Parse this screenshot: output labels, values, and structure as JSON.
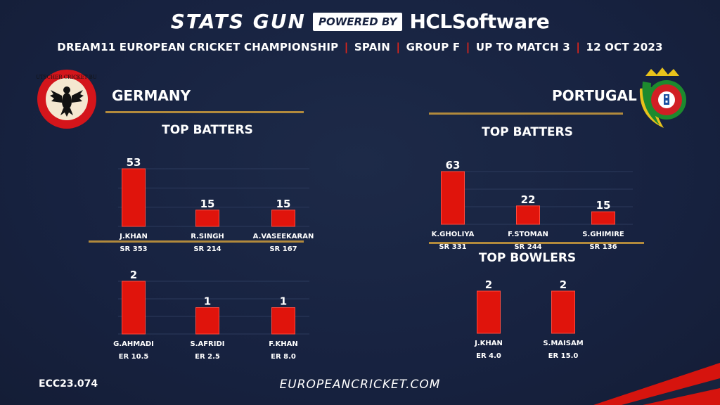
{
  "header": {
    "brand": "STATS GUN",
    "powered_by": "POWERED BY",
    "sponsor": "HCLSoftware",
    "subtitle_parts": [
      "DREAM11 EUROPEAN CRICKET CHAMPIONSHIP",
      "SPAIN",
      "GROUP F",
      "UP TO MATCH 3",
      "12 OCT 2023"
    ],
    "separator": "|"
  },
  "teams": {
    "left": {
      "name": "GERMANY",
      "logo_icon": "deutscher-cricket-bund-logo",
      "logo_text": "DEUTSCHER CRICKET BUND"
    },
    "right": {
      "name": "PORTUGAL",
      "logo_icon": "portugal-cricket-federation-logo"
    }
  },
  "colors": {
    "bar": "#e0140c",
    "gold": "#b28a3c",
    "accent_red": "#e0251b",
    "background": "#18233d"
  },
  "chart_data": [
    {
      "type": "bar",
      "id": "germany-batters",
      "title": "TOP BATTERS",
      "categories": [
        "J.KHAN",
        "R.SINGH",
        "A.VASEEKARAN"
      ],
      "values": [
        53,
        15,
        15
      ],
      "sublabels": [
        "SR 353",
        "SR 214",
        "SR 167"
      ],
      "ylim": [
        0,
        53
      ],
      "grid": true
    },
    {
      "type": "bar",
      "id": "germany-bowlers",
      "title": "",
      "categories": [
        "G.AHMADI",
        "S.AFRIDI",
        "F.KHAN"
      ],
      "values": [
        2,
        1,
        1
      ],
      "sublabels": [
        "ER 10.5",
        "ER 2.5",
        "ER 8.0"
      ],
      "ylim": [
        0,
        2
      ],
      "grid": true
    },
    {
      "type": "bar",
      "id": "portugal-batters",
      "title": "TOP BATTERS",
      "categories": [
        "K.GHOLIYA",
        "F.STOMAN",
        "S.GHIMIRE"
      ],
      "values": [
        63,
        22,
        15
      ],
      "sublabels": [
        "SR 331",
        "SR 244",
        "SR 136"
      ],
      "ylim": [
        0,
        63
      ],
      "grid": true
    },
    {
      "type": "bar",
      "id": "portugal-bowlers",
      "title": "TOP BOWLERS",
      "categories": [
        "J.KHAN",
        "S.MAISAM"
      ],
      "values": [
        2,
        2
      ],
      "sublabels": [
        "ER 4.0",
        "ER 15.0"
      ],
      "ylim": [
        0,
        2
      ],
      "grid": true
    }
  ],
  "footer": {
    "code": "ECC23.074",
    "site": "EUROPEANCRICKET.COM"
  }
}
